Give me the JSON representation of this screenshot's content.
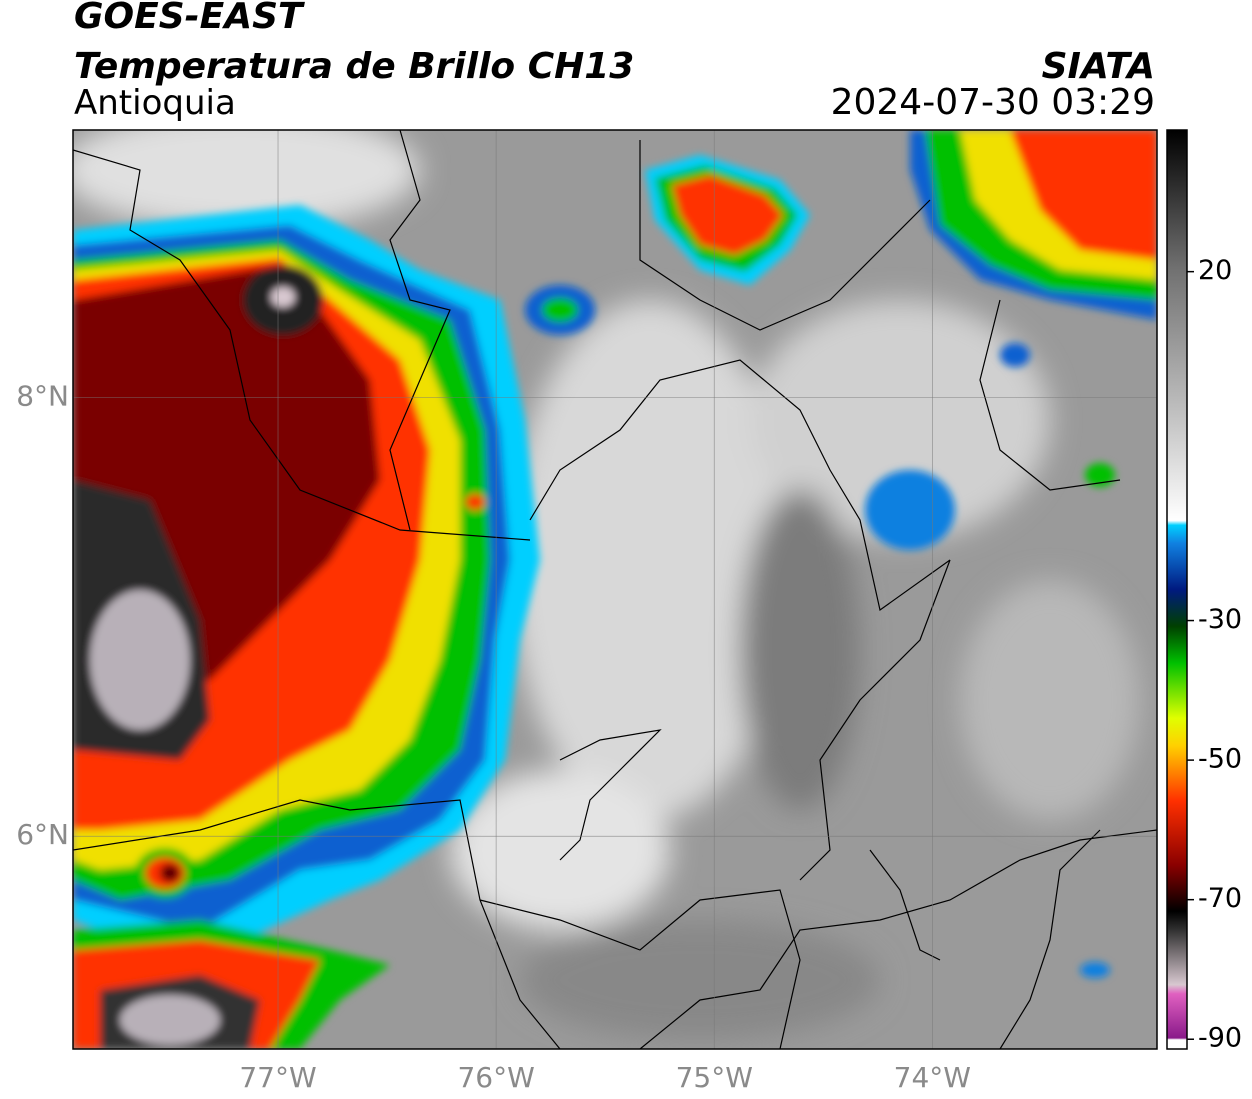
{
  "header": {
    "title": "GOES-EAST",
    "subtitle": "Temperatura de Brillo CH13",
    "region": "Antioquia",
    "source": "SIATA",
    "datetime": "2024-07-30 03:29"
  },
  "map": {
    "xlim": [
      -77.94,
      -72.97
    ],
    "ylim": [
      5.03,
      9.22
    ],
    "xticks": [
      {
        "value": -77,
        "label": "77°W"
      },
      {
        "value": -76,
        "label": "76°W"
      },
      {
        "value": -75,
        "label": "75°W"
      },
      {
        "value": -74,
        "label": "74°W"
      }
    ],
    "yticks": [
      {
        "value": 8,
        "label": "8°N"
      },
      {
        "value": 6,
        "label": "6°N"
      }
    ],
    "grid": true
  },
  "colorbar": {
    "lim": [
      -91.4,
      40.3
    ],
    "ticks": [
      20,
      -30,
      -50,
      -70,
      -90
    ]
  }
}
